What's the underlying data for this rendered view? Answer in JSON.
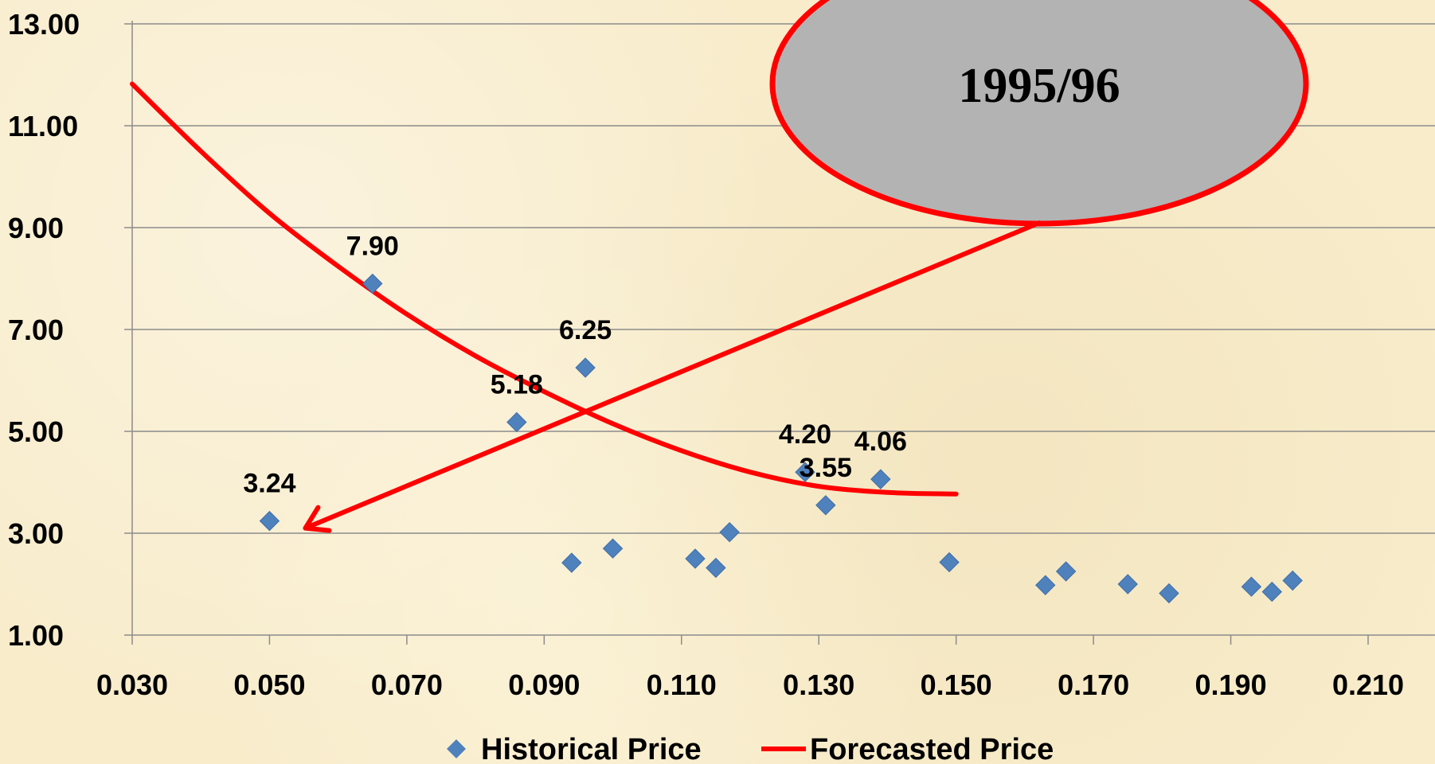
{
  "chart_data": {
    "type": "scatter",
    "title": "",
    "xlabel": "",
    "ylabel": "",
    "xlim": [
      0.03,
      0.21
    ],
    "ylim": [
      1.0,
      13.0
    ],
    "x_ticks": [
      "0.030",
      "0.050",
      "0.070",
      "0.090",
      "0.110",
      "0.130",
      "0.150",
      "0.170",
      "0.190",
      "0.210"
    ],
    "y_ticks": [
      "1.00",
      "3.00",
      "5.00",
      "7.00",
      "9.00",
      "11.00",
      "13.00"
    ],
    "grid": "horizontal",
    "legend_position": "bottom",
    "series": [
      {
        "name": "Historical Price",
        "kind": "markers",
        "marker": "diamond",
        "color": "#4f81bd",
        "points": [
          {
            "x": 0.05,
            "y": 3.24,
            "label": "3.24"
          },
          {
            "x": 0.065,
            "y": 7.9,
            "label": "7.90"
          },
          {
            "x": 0.086,
            "y": 5.18,
            "label": "5.18"
          },
          {
            "x": 0.094,
            "y": 2.42
          },
          {
            "x": 0.096,
            "y": 6.25,
            "label": "6.25"
          },
          {
            "x": 0.1,
            "y": 2.7
          },
          {
            "x": 0.112,
            "y": 2.5
          },
          {
            "x": 0.115,
            "y": 2.32
          },
          {
            "x": 0.117,
            "y": 3.02
          },
          {
            "x": 0.128,
            "y": 4.2,
            "label": "4.20"
          },
          {
            "x": 0.131,
            "y": 3.55,
            "label": "3.55"
          },
          {
            "x": 0.139,
            "y": 4.06,
            "label": "4.06"
          },
          {
            "x": 0.149,
            "y": 2.43
          },
          {
            "x": 0.163,
            "y": 1.98
          },
          {
            "x": 0.166,
            "y": 2.25
          },
          {
            "x": 0.175,
            "y": 2.0
          },
          {
            "x": 0.181,
            "y": 1.82
          },
          {
            "x": 0.193,
            "y": 1.95
          },
          {
            "x": 0.196,
            "y": 1.85
          },
          {
            "x": 0.199,
            "y": 2.07
          }
        ]
      },
      {
        "name": "Forecasted Price",
        "kind": "line",
        "color": "#ff0000",
        "points": [
          {
            "x": 0.03,
            "y": 11.82
          },
          {
            "x": 0.04,
            "y": 10.5
          },
          {
            "x": 0.05,
            "y": 9.28
          },
          {
            "x": 0.06,
            "y": 8.24
          },
          {
            "x": 0.07,
            "y": 7.3
          },
          {
            "x": 0.08,
            "y": 6.48
          },
          {
            "x": 0.09,
            "y": 5.78
          },
          {
            "x": 0.1,
            "y": 5.15
          },
          {
            "x": 0.11,
            "y": 4.62
          },
          {
            "x": 0.12,
            "y": 4.2
          },
          {
            "x": 0.13,
            "y": 3.92
          },
          {
            "x": 0.14,
            "y": 3.8
          },
          {
            "x": 0.15,
            "y": 3.77
          }
        ]
      }
    ]
  },
  "callout": {
    "text": "1995/96",
    "fill": "#b3b3b3",
    "stroke": "#ff0000",
    "points_to": {
      "x": 0.05,
      "y": 3.24
    }
  }
}
